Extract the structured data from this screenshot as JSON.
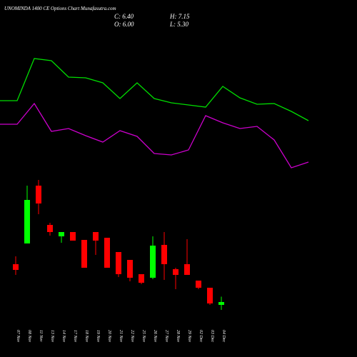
{
  "chart_data": {
    "type": "candlestick",
    "title": "UNOMINDA 1400 CE Options Chart Munafasutra.com",
    "summary": {
      "close": "C: 6.40",
      "high": "H: 7.15",
      "open": "O: 6.00",
      "low": "L: 5.30"
    },
    "categories": [
      "07 Nov",
      "08 Nov",
      "11 Nov",
      "13 Nov",
      "14 Nov",
      "17 Nov",
      "18 Nov",
      "19 Nov",
      "20 Nov",
      "21 Nov",
      "22 Nov",
      "25 Nov",
      "26 Nov",
      "27 Nov",
      "28 Nov",
      "29 Nov",
      "02 Dec",
      "03 Dec",
      "04 Dec"
    ],
    "open": [
      11.7,
      14.6,
      22.7,
      17.2,
      15.6,
      16.2,
      15.1,
      16.2,
      15.4,
      13.4,
      12.3,
      10.3,
      9.8,
      14.4,
      11.0,
      11.7,
      9.4,
      8.4,
      6.0
    ],
    "high": [
      12.8,
      22.7,
      23.5,
      17.5,
      16.2,
      16.2,
      15.1,
      16.2,
      15.4,
      13.4,
      12.3,
      10.3,
      15.6,
      16.2,
      11.2,
      15.2,
      9.4,
      8.4,
      7.15
    ],
    "low": [
      10.2,
      14.6,
      18.7,
      15.7,
      14.7,
      15.0,
      11.2,
      13.0,
      11.2,
      9.9,
      9.3,
      8.9,
      9.6,
      9.5,
      8.2,
      10.2,
      8.2,
      6.0,
      5.3
    ],
    "close": [
      10.9,
      20.7,
      20.2,
      16.2,
      16.2,
      15.0,
      11.2,
      15.0,
      11.2,
      10.3,
      9.8,
      9.1,
      14.3,
      11.7,
      10.2,
      10.2,
      8.4,
      6.2,
      6.4
    ],
    "up_color": "#00ff00",
    "down_color": "#ff0000",
    "ylim": [
      4.7,
      23.7
    ],
    "y2lim": [
      0,
      100
    ],
    "series": [
      {
        "color": "#00dd00",
        "axis": "y2",
        "values": [
          54.5,
          54.5,
          84,
          82.5,
          71,
          70.5,
          67,
          56,
          67,
          56,
          53,
          51.5,
          50,
          64.5,
          56.5,
          52,
          52.5,
          47,
          40.5
        ]
      },
      {
        "color": "#cc00cc",
        "axis": "y2",
        "values": [
          38,
          38,
          52.5,
          33,
          35,
          30,
          25.5,
          33.5,
          29.5,
          17.5,
          16.5,
          20,
          44,
          39,
          35,
          36.5,
          27,
          7.5,
          11.5
        ]
      }
    ]
  }
}
